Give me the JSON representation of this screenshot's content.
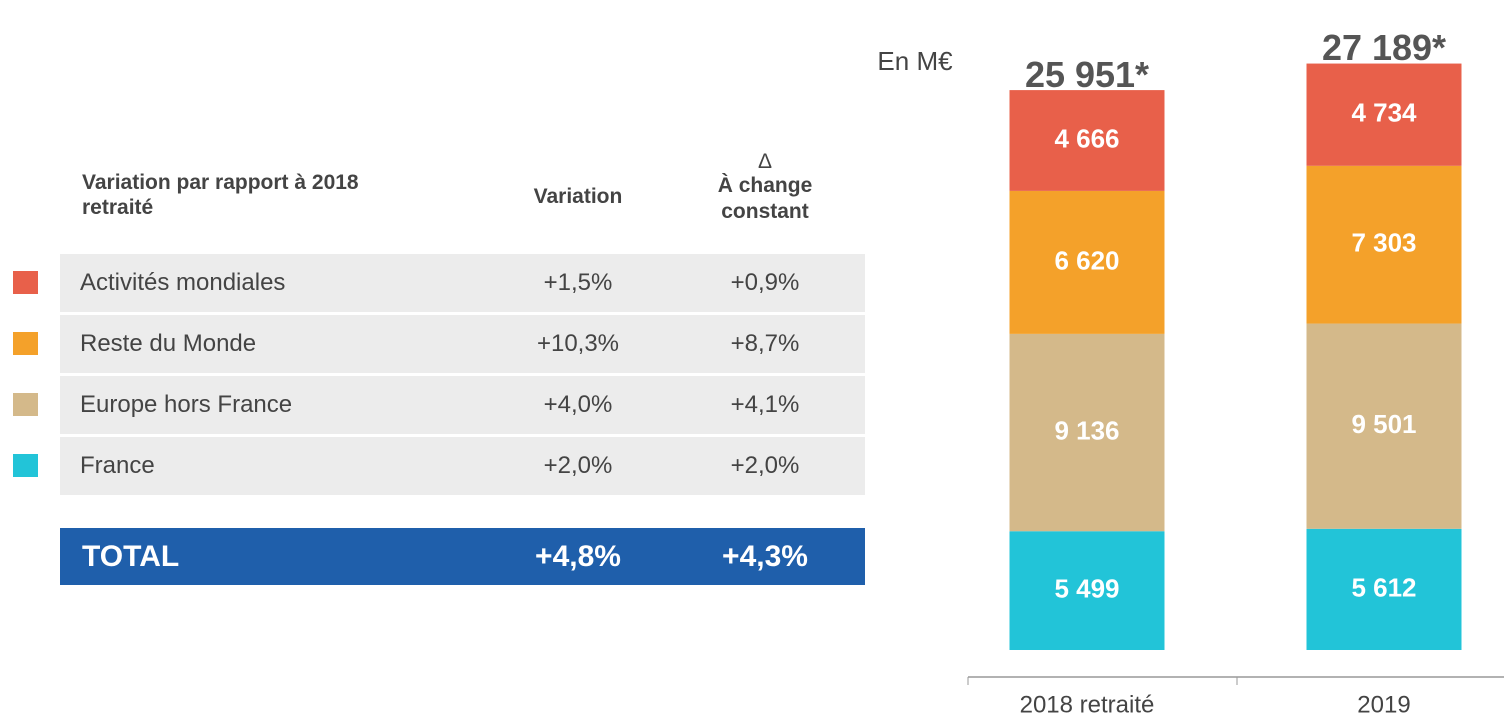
{
  "table": {
    "headers": [
      "Variation par rapport à 2018 retraité",
      "Variation",
      "Δ",
      "À change constant"
    ],
    "rows": [
      [
        "+2,0%",
        "+2,0%"
      ],
      [
        "+4,0%",
        "+4,1%"
      ],
      [
        "+10,3%",
        "+8,7%"
      ],
      [
        "+1,5%",
        "+0,9%"
      ]
    ],
    "total": [
      "TOTAL",
      "+4,8%",
      "+4,3%"
    ]
  },
  "chart_data": {
    "type": "stacked_bar",
    "unit_label": "En M€",
    "categories": [
      "2018 retraité",
      "2019"
    ],
    "series": [
      {
        "name": "France",
        "color": "#22c4d8",
        "values": [
          5499,
          5612
        ],
        "value_labels": [
          "5 499",
          "5 612"
        ]
      },
      {
        "name": "Europe hors France",
        "color": "#d4b98a",
        "values": [
          9136,
          9501
        ],
        "value_labels": [
          "9 136",
          "9 501"
        ]
      },
      {
        "name": "Reste du Monde",
        "color": "#f4a12a",
        "values": [
          6620,
          7303
        ],
        "value_labels": [
          "6 620",
          "7 303"
        ]
      },
      {
        "name": "Activités mondiales",
        "color": "#e8604a",
        "values": [
          4666,
          4734
        ],
        "value_labels": [
          "4 666",
          "4 734"
        ]
      }
    ],
    "totals": [
      25951,
      27189
    ],
    "total_labels": [
      "25 951*",
      "27 189*"
    ],
    "ylim": [
      0,
      30000
    ]
  }
}
